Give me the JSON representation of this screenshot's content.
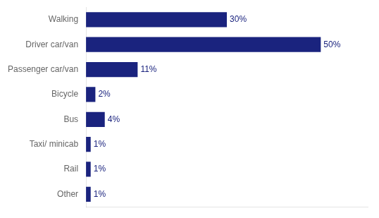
{
  "chart_data": {
    "type": "bar",
    "orientation": "horizontal",
    "categories": [
      "Walking",
      "Driver car/van",
      "Passenger car/van",
      "Bicycle",
      "Bus",
      "Taxi/ minicab",
      "Rail",
      "Other"
    ],
    "values": [
      30,
      50,
      11,
      2,
      4,
      1,
      1,
      1
    ],
    "value_labels": [
      "30%",
      "50%",
      "11%",
      "2%",
      "4%",
      "1%",
      "1%",
      "1%"
    ],
    "data_labels": true,
    "color": "#1a237e",
    "xlim": [
      0,
      60
    ],
    "grid": false,
    "tick_labels": "y"
  }
}
